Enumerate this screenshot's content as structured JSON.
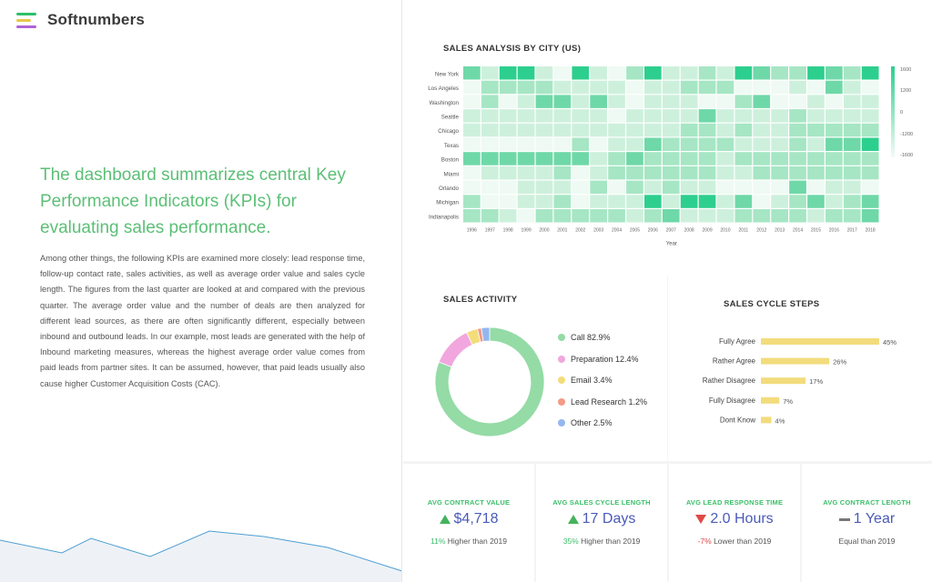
{
  "brand": {
    "name": "Softnumbers",
    "logo_colors": [
      "#2fbf6a",
      "#e6c84a",
      "#b062d6"
    ]
  },
  "intro": {
    "headline": "The dashboard summarizes central Key Performance Indicators (KPIs) for evaluating sales performance.",
    "body": "Among other things, the following KPIs are examined more closely: lead response time, follow-up contact rate, sales activities, as well as average order value and sales cycle length. The figures from the last quarter are looked at and compared with the previous quarter. The average order value and the number of deals are then analyzed for different lead sources, as there are often significantly different, especially between inbound and outbound leads. In our example, most leads are generated with the help of Inbound marketing measures, whereas the highest average order value comes from paid leads from partner sites. It can be assumed, however, that paid leads usually also cause higher Customer Acquisition Costs (CAC)."
  },
  "menu": {
    "icon": "hamburger-menu-icon"
  },
  "colors": {
    "accent_green": "#3cbf6a",
    "kpi_value": "#4a5ab8",
    "up": "#44b35c",
    "down": "#e04848",
    "bar": "#f2dc7c"
  },
  "chart_data": [
    {
      "type": "heatmap",
      "title": "SALES ANALYSIS BY CITY (US)",
      "xlabel": "Year",
      "ylabel": "",
      "x": [
        "1996",
        "1997",
        "1998",
        "1999",
        "2000",
        "2001",
        "2002",
        "2003",
        "2004",
        "2005",
        "2006",
        "2007",
        "2008",
        "2009",
        "2010",
        "2011",
        "2012",
        "2013",
        "2014",
        "2015",
        "2016",
        "2017",
        "2018"
      ],
      "y": [
        "New York",
        "Los Angeles",
        "Washington",
        "Seattle",
        "Chicago",
        "Texas",
        "Boston",
        "Miami",
        "Orlando",
        "Michigan",
        "Indianapolis"
      ],
      "colorbar_ticks": [
        "1600",
        "1200",
        "0",
        "-1200",
        "-1600"
      ],
      "values": [
        [
          3,
          1,
          4,
          4,
          1,
          0,
          4,
          1,
          0,
          2,
          4,
          1,
          1,
          2,
          1,
          4,
          3,
          2,
          2,
          4,
          3,
          2,
          4
        ],
        [
          0,
          2,
          2,
          2,
          2,
          1,
          1,
          1,
          1,
          0,
          1,
          1,
          2,
          2,
          2,
          0,
          0,
          0,
          1,
          0,
          3,
          1,
          0
        ],
        [
          0,
          2,
          0,
          1,
          3,
          3,
          1,
          3,
          1,
          0,
          1,
          1,
          1,
          0,
          0,
          2,
          3,
          0,
          0,
          1,
          0,
          1,
          1
        ],
        [
          1,
          1,
          1,
          1,
          1,
          1,
          1,
          1,
          0,
          1,
          1,
          1,
          1,
          3,
          1,
          1,
          1,
          1,
          2,
          1,
          1,
          1,
          1
        ],
        [
          1,
          1,
          1,
          1,
          1,
          1,
          1,
          1,
          1,
          1,
          1,
          1,
          2,
          2,
          1,
          2,
          1,
          1,
          2,
          2,
          2,
          2,
          2
        ],
        [
          0,
          0,
          0,
          0,
          0,
          0,
          2,
          0,
          1,
          1,
          3,
          2,
          2,
          2,
          2,
          1,
          1,
          1,
          2,
          1,
          3,
          3,
          4
        ],
        [
          3,
          3,
          3,
          3,
          3,
          3,
          3,
          1,
          2,
          3,
          2,
          2,
          2,
          2,
          1,
          2,
          2,
          2,
          2,
          2,
          2,
          2,
          2
        ],
        [
          0,
          1,
          1,
          1,
          1,
          2,
          0,
          1,
          2,
          2,
          2,
          2,
          2,
          2,
          1,
          1,
          2,
          2,
          2,
          2,
          2,
          2,
          2
        ],
        [
          0,
          0,
          0,
          1,
          1,
          1,
          0,
          2,
          0,
          2,
          1,
          2,
          1,
          1,
          0,
          0,
          0,
          0,
          3,
          0,
          1,
          1,
          0
        ],
        [
          2,
          0,
          0,
          1,
          1,
          2,
          0,
          1,
          1,
          1,
          4,
          1,
          4,
          4,
          1,
          3,
          0,
          1,
          2,
          3,
          1,
          2,
          3
        ],
        [
          2,
          2,
          1,
          0,
          2,
          2,
          2,
          2,
          2,
          1,
          2,
          3,
          1,
          1,
          1,
          2,
          2,
          2,
          2,
          1,
          2,
          2,
          3
        ]
      ]
    },
    {
      "type": "pie",
      "title": "SALES ACTIVITY",
      "labels": [
        "Call 82.9%",
        "Preparation 12.4%",
        "Email 3.4%",
        "Lead Research 1.2%",
        "Other 2.5%"
      ],
      "values": [
        82.9,
        12.4,
        3.4,
        1.2,
        2.5
      ],
      "colors": [
        "#94dba6",
        "#f1a7de",
        "#f3dc7a",
        "#f49a86",
        "#93b7f0"
      ]
    },
    {
      "type": "bar",
      "title": "SALES CYCLE STEPS",
      "categories": [
        "Fully Agree",
        "Rather Agree",
        "Rather Disagree",
        "Fully Disagree",
        "Dont Know"
      ],
      "values": [
        45,
        26,
        17,
        7,
        4
      ],
      "value_labels": [
        "45%",
        "26%",
        "17%",
        "7%",
        "4%"
      ],
      "orientation": "horizontal",
      "xlim": [
        0,
        45
      ]
    }
  ],
  "kpis": [
    {
      "title": "AVG CONTRACT VALUE",
      "value": "$4,718",
      "trend": "up",
      "change": "11%",
      "note": "Higher than 2019"
    },
    {
      "title": "AVG SALES CYCLE LENGTH",
      "value": "17 Days",
      "trend": "up",
      "change": "35%",
      "note": "Higher than 2019"
    },
    {
      "title": "AVG LEAD RESPONSE TIME",
      "value": "2.0 Hours",
      "trend": "down",
      "change": "-7%",
      "note": "Lower than 2019"
    },
    {
      "title": "AVG CONTRACT LENGTH",
      "value": "1 Year",
      "trend": "flat",
      "change": "",
      "note": "Equal than 2019"
    }
  ]
}
